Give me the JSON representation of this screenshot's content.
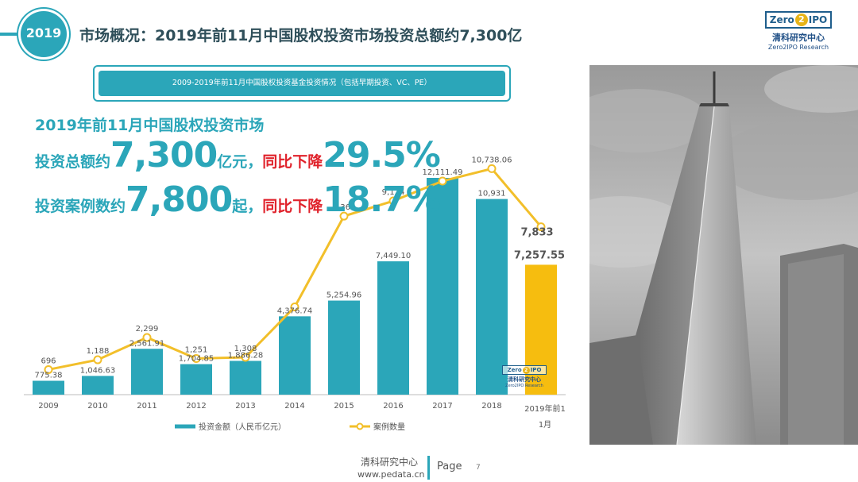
{
  "header": {
    "year_badge": "2019",
    "title": "市场概况：2019年前11月中国股权投资市场投资总额约7,300亿"
  },
  "logo": {
    "cn": "清科研究中心",
    "en": "Zero2IPO Research",
    "mark_left": "Zero",
    "mark_two": "2",
    "mark_right": "IPO"
  },
  "banner": {
    "text": "2009-2019年前11月中国股权投资基金投资情况（包括早期投资、VC、PE）"
  },
  "headline": {
    "line1": "2019年前11月中国股权投资市场",
    "amount_prefix": "投资总额约",
    "amount_value": "7,300",
    "amount_unit": "亿元，",
    "amount_change_label": "同比下降",
    "amount_change_value": "29.5%",
    "cases_prefix": "投资案例数约",
    "cases_value": "7,800",
    "cases_unit": "起，",
    "cases_change_label": "同比下降",
    "cases_change_value": "18.7%"
  },
  "colors": {
    "teal": "#2ba6b9",
    "yellow": "#f6bd0f",
    "line": "#f2bf2a",
    "red": "#e0222b"
  },
  "chart_data": {
    "type": "bar",
    "categories": [
      "2009",
      "2010",
      "2011",
      "2012",
      "2013",
      "2014",
      "2015",
      "2016",
      "2017",
      "2018",
      "2019年前11月"
    ],
    "series": [
      {
        "name": "投资金额（人民币亿元）",
        "type": "bar",
        "values": [
          775.38,
          1046.63,
          2561.91,
          1704.85,
          1886.28,
          4376.74,
          5254.96,
          7449.1,
          12111.49,
          10931,
          7257.55
        ],
        "labels": [
          "775.38",
          "1,046.63",
          "2,561.91",
          "1,704.85",
          "1,886.28",
          "4,376.74",
          "5,254.96",
          "7,449.10",
          "12,111.49",
          "10,931",
          "7,257.55"
        ]
      },
      {
        "name": "案例数量",
        "type": "line",
        "values": [
          696,
          1188,
          2299,
          1251,
          1308,
          3829,
          8365,
          9124,
          10118,
          10738.06,
          7833
        ],
        "labels": [
          "696",
          "1,188",
          "2,299",
          "1,251",
          "1,308",
          "",
          "8,365",
          "9,124",
          "",
          "10,738.06",
          "7,833"
        ]
      }
    ],
    "grid": false,
    "legend": "bottom"
  },
  "watermark": {
    "cn": "清科研究中心",
    "en": "Zero2IPO Research"
  },
  "footer": {
    "org": "清科研究中心",
    "url": "www.pedata.cn",
    "page_label": "Page",
    "page_number": "7"
  }
}
